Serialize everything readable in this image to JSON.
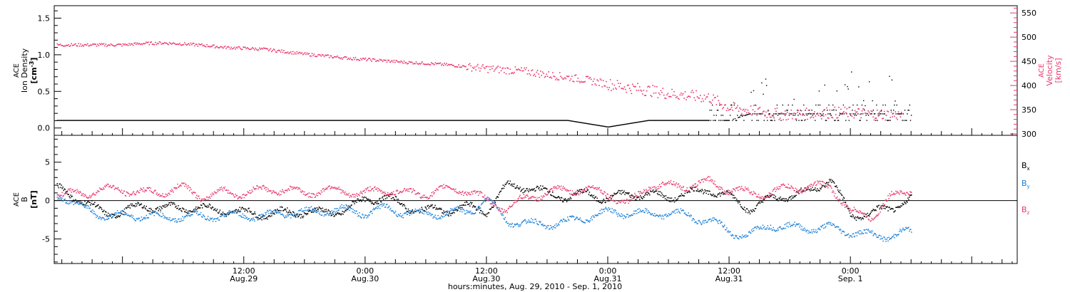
{
  "chart_data": [
    {
      "type": "scatter",
      "title": "",
      "ylabel_left": {
        "line1": "ACE",
        "line2": "Ion Density",
        "line3": "[cm",
        "exp": "-3",
        "close": "]"
      },
      "ylabel_right": {
        "line1": "ACE",
        "line2": "Velocity",
        "line3": "[km/s]"
      },
      "ylim_left": [
        -0.1,
        1.67
      ],
      "ylim_right": [
        297,
        565
      ],
      "yticks_left": [
        "0.0",
        "0.5",
        "1.0",
        "1.5"
      ],
      "yticks_left_values": [
        0.0,
        0.5,
        1.0,
        1.5
      ],
      "yticks_right": [
        "300",
        "350",
        "400",
        "450",
        "500",
        "550"
      ],
      "yticks_right_values": [
        300,
        350,
        400,
        450,
        500,
        550
      ],
      "series": [
        {
          "name": "",
          "axis": "left",
          "color": "#000000",
          "x_hours": [
            0,
            4,
            8,
            12,
            16,
            20,
            24,
            28,
            32,
            36,
            40,
            44,
            48,
            52,
            56,
            60,
            62,
            66,
            70,
            72
          ],
          "density_cm3": [
            0.11,
            0.11,
            0.11,
            0.11,
            0.11,
            0.11,
            0.11,
            0.11,
            0.11,
            0.11,
            0.11,
            0.11,
            0.02,
            0.11,
            0.11,
            0.11,
            0.2,
            0.2,
            0.2,
            0.2
          ]
        },
        {
          "name": "",
          "axis": "right",
          "color": "#e8386c",
          "x_hours": [
            0,
            2,
            4,
            6,
            8,
            10,
            12,
            14,
            16,
            18,
            20,
            22,
            24,
            26,
            28,
            30,
            32,
            34,
            36,
            38,
            40,
            42,
            44,
            46,
            48,
            50,
            52,
            54,
            56,
            58,
            60,
            62,
            64,
            66,
            68,
            70,
            72,
            74,
            76
          ],
          "velocity_kms": [
            485,
            488,
            489,
            487,
            484,
            480,
            478,
            476,
            471,
            466,
            462,
            458,
            455,
            452,
            449,
            447,
            444,
            440,
            436,
            433,
            430,
            423,
            418,
            412,
            404,
            397,
            391,
            384,
            380,
            376,
            355,
            350,
            344,
            340,
            343,
            345,
            345,
            342,
            340
          ]
        }
      ],
      "x_unit": "hours since 0:00 Aug.29"
    },
    {
      "type": "scatter",
      "title": "",
      "ylabel": {
        "line1": "ACE",
        "line2": "B",
        "line3": "[nT]"
      },
      "ylim": [
        -8.2,
        8.5
      ],
      "yticks": [
        "-5",
        "0",
        "5"
      ],
      "yticks_values": [
        -5,
        0,
        5
      ],
      "legend_placement": "right",
      "series": [
        {
          "name": "B",
          "subscript": "x",
          "color": "#000000",
          "x_hours": [
            -6,
            -4,
            -2,
            0,
            2,
            4,
            6,
            8,
            10,
            12,
            14,
            16,
            18,
            20,
            22,
            24,
            26,
            28,
            30,
            32,
            34,
            36,
            38,
            40,
            42,
            44,
            46,
            48,
            50,
            52,
            54,
            56,
            58,
            60,
            62,
            64,
            66,
            68,
            70,
            72,
            74,
            76,
            78
          ],
          "field_nT": [
            1.5,
            0,
            -1.5,
            -1.5,
            -0.5,
            -1,
            -0.8,
            -1,
            -1.2,
            -1.5,
            -1.7,
            -1.5,
            -1.4,
            -1.5,
            -1.2,
            0.2,
            0.5,
            -0.8,
            -1.2,
            -1.2,
            -0.8,
            -1.3,
            2.0,
            1.8,
            1.0,
            0.5,
            1.0,
            0.2,
            1.0,
            0.8,
            0.5,
            1.0,
            1.5,
            0.5,
            -1.0,
            0.2,
            0.8,
            1.2,
            3.0,
            -2.0,
            -1.5,
            -1.0,
            0.5
          ]
        },
        {
          "name": "B",
          "subscript": "y",
          "color": "#1a80d8",
          "x_hours": [
            -6,
            -4,
            -2,
            0,
            2,
            4,
            6,
            8,
            10,
            12,
            14,
            16,
            18,
            20,
            22,
            24,
            26,
            28,
            30,
            32,
            34,
            36,
            38,
            40,
            42,
            44,
            46,
            48,
            50,
            52,
            54,
            56,
            58,
            60,
            62,
            64,
            66,
            68,
            70,
            72,
            74,
            76,
            78
          ],
          "field_nT": [
            0.8,
            -1,
            -1.8,
            -2.0,
            -1.8,
            -2.2,
            -2.0,
            -2.0,
            -2.0,
            -1.8,
            -2.0,
            -1.5,
            -1.5,
            -1.2,
            -1.2,
            -1.5,
            -1.0,
            -1.5,
            -1.8,
            -1.5,
            -1.5,
            0.2,
            -2.5,
            -3.0,
            -3.0,
            -2.8,
            -2.0,
            -1.5,
            -1.5,
            -1.8,
            -1.5,
            -2.0,
            -2.5,
            -4.0,
            -4.5,
            -3.0,
            -3.5,
            -3.5,
            -3.5,
            -4.0,
            -4.5,
            -4.5,
            -4.0
          ]
        },
        {
          "name": "B",
          "subscript": "z",
          "color": "#e8386c",
          "x_hours": [
            -6,
            -4,
            -2,
            0,
            2,
            4,
            6,
            8,
            10,
            12,
            14,
            16,
            18,
            20,
            22,
            24,
            26,
            28,
            30,
            32,
            34,
            36,
            38,
            40,
            42,
            44,
            46,
            48,
            50,
            52,
            54,
            56,
            58,
            60,
            62,
            64,
            66,
            68,
            70,
            72,
            74,
            76,
            78
          ],
          "field_nT": [
            0.8,
            1.0,
            1.5,
            1.5,
            1.0,
            1.2,
            1.8,
            0.5,
            1.2,
            1.0,
            1.5,
            1.5,
            1.0,
            1.5,
            1.2,
            1.0,
            1.5,
            1.0,
            1.0,
            1.5,
            1.5,
            0,
            -1.0,
            0.5,
            1.0,
            1.5,
            1.5,
            1.0,
            -0.5,
            2.0,
            2.0,
            2.0,
            2.5,
            1.5,
            1.0,
            1.0,
            1.8,
            1.8,
            2.0,
            -1.5,
            -2.0,
            0.5,
            1.5
          ]
        }
      ]
    }
  ],
  "x_axis": {
    "xlim_hours": [
      -6.75,
      88.5
    ],
    "major_ticks": [
      {
        "hours": 12,
        "time": "12:00",
        "date": "Aug.29"
      },
      {
        "hours": 24,
        "time": "0:00",
        "date": "Aug.30"
      },
      {
        "hours": 36,
        "time": "12:00",
        "date": "Aug.30"
      },
      {
        "hours": 48,
        "time": "0:00",
        "date": "Aug.31"
      },
      {
        "hours": 60,
        "time": "12:00",
        "date": "Aug.31"
      },
      {
        "hours": 72,
        "time": "0:00",
        "date": "Sep. 1"
      }
    ],
    "label": "hours:minutes, Aug. 29, 2010 - Sep.  1, 2010"
  },
  "colors": {
    "black": "#000000",
    "blue": "#1a80d8",
    "red": "#e8386c"
  }
}
